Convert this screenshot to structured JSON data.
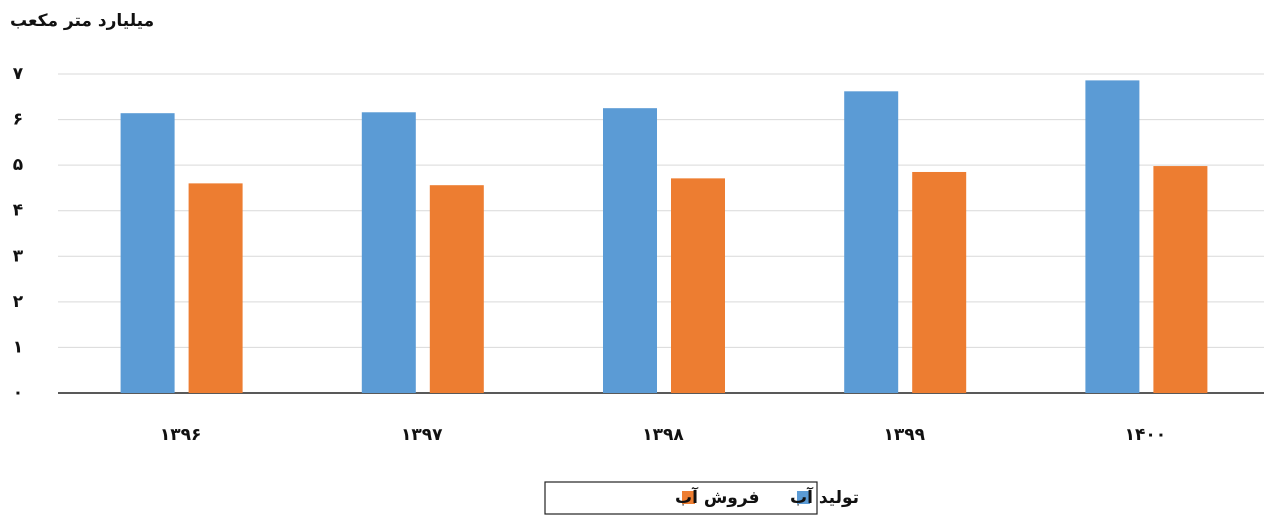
{
  "chart_data": {
    "type": "bar",
    "title": "میلیارد متر مکعب",
    "categories": [
      "۱۳۹۶",
      "۱۳۹۷",
      "۱۳۹۸",
      "۱۳۹۹",
      "۱۴۰۰"
    ],
    "series": [
      {
        "name": "تولید آب",
        "color": "#5b9bd5",
        "values": [
          6.14,
          6.16,
          6.25,
          6.62,
          6.86
        ]
      },
      {
        "name": "فروش آب",
        "color": "#ed7d31",
        "values": [
          4.6,
          4.56,
          4.71,
          4.85,
          4.98
        ]
      }
    ],
    "ylim": [
      0,
      7
    ],
    "yticks": [
      {
        "value": 0,
        "label": "۰"
      },
      {
        "value": 1,
        "label": "۱"
      },
      {
        "value": 2,
        "label": "۲"
      },
      {
        "value": 3,
        "label": "۳"
      },
      {
        "value": 4,
        "label": "۴"
      },
      {
        "value": 5,
        "label": "۵"
      },
      {
        "value": 6,
        "label": "۶"
      },
      {
        "value": 7,
        "label": "۷"
      }
    ],
    "grid": true,
    "legend": "bottom"
  }
}
